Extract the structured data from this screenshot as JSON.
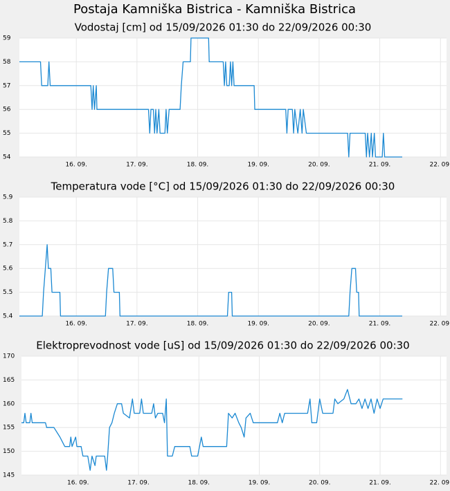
{
  "title": "Postaja Kamniška Bistrica - Kamniška Bistrica",
  "chart_data": [
    {
      "type": "line",
      "title": "Vodostaj [cm] od 15/09/2026 01:30 do 22/09/2026 00:30",
      "color": "#1a88d2",
      "grid": true,
      "xlim": [
        15.0625,
        22.1
      ],
      "xticks": [
        {
          "value": 16,
          "label": "16. 09."
        },
        {
          "value": 17,
          "label": "17. 09."
        },
        {
          "value": 18,
          "label": "18. 09."
        },
        {
          "value": 19,
          "label": "19. 09."
        },
        {
          "value": 20,
          "label": "20. 09."
        },
        {
          "value": 21,
          "label": "21. 09."
        },
        {
          "value": 22,
          "label": "22. 09."
        }
      ],
      "ylim": [
        54,
        59
      ],
      "yticks": [
        54,
        55,
        56,
        57,
        58,
        59
      ],
      "x": [
        15.0625,
        15.41,
        15.43,
        15.53,
        15.55,
        15.57,
        16.24,
        16.26,
        16.28,
        16.3,
        16.33,
        16.34,
        17.19,
        17.21,
        17.23,
        17.27,
        17.29,
        17.31,
        17.33,
        17.36,
        17.38,
        17.46,
        17.48,
        17.5,
        17.53,
        17.71,
        17.73,
        17.76,
        17.88,
        17.89,
        18.18,
        18.19,
        18.42,
        18.44,
        18.46,
        18.48,
        18.52,
        18.54,
        18.56,
        18.58,
        18.6,
        18.93,
        18.94,
        19.45,
        19.47,
        19.49,
        19.56,
        19.58,
        19.6,
        19.65,
        19.69,
        19.72,
        19.74,
        19.79,
        20.47,
        20.49,
        20.51,
        20.76,
        20.78,
        20.8,
        20.83,
        20.86,
        20.88,
        20.91,
        20.93,
        21.04,
        21.06,
        21.08,
        21.37
      ],
      "values": [
        58,
        58,
        57,
        57,
        58,
        57,
        57,
        56,
        57,
        56,
        57,
        56,
        56,
        55,
        56,
        56,
        55,
        56,
        55,
        56,
        55,
        55,
        56,
        55,
        56,
        56,
        57,
        58,
        58,
        59,
        59,
        58,
        58,
        57,
        58,
        57,
        57,
        58,
        57,
        58,
        57,
        57,
        56,
        56,
        55,
        56,
        56,
        55,
        56,
        55,
        56,
        55,
        56,
        55,
        55,
        54,
        55,
        55,
        54,
        55,
        54,
        55,
        54,
        55,
        54,
        54,
        55,
        54,
        54
      ]
    },
    {
      "type": "line",
      "title": "Temperatura vode [°C] od 15/09/2026 01:30 do 22/09/2026 00:30",
      "color": "#1a88d2",
      "grid": true,
      "xlim": [
        15.0625,
        22.1
      ],
      "xticks": [
        {
          "value": 16,
          "label": "16. 09."
        },
        {
          "value": 17,
          "label": "17. 09."
        },
        {
          "value": 18,
          "label": "18. 09."
        },
        {
          "value": 19,
          "label": "19. 09."
        },
        {
          "value": 20,
          "label": "20. 09."
        },
        {
          "value": 21,
          "label": "21. 09."
        },
        {
          "value": 22,
          "label": "22. 09."
        }
      ],
      "ylim": [
        5.4,
        5.9
      ],
      "yticks": [
        5.4,
        5.5,
        5.6,
        5.7,
        5.8,
        5.9
      ],
      "x": [
        15.0625,
        15.44,
        15.46,
        15.49,
        15.52,
        15.54,
        15.58,
        15.6,
        15.73,
        15.74,
        16.48,
        16.5,
        16.53,
        16.6,
        16.62,
        16.71,
        16.72,
        18.49,
        18.51,
        18.56,
        18.57,
        20.49,
        20.51,
        20.54,
        20.6,
        20.62,
        20.65,
        20.66,
        21.37
      ],
      "values": [
        5.4,
        5.4,
        5.5,
        5.6,
        5.7,
        5.6,
        5.6,
        5.5,
        5.5,
        5.4,
        5.4,
        5.5,
        5.6,
        5.6,
        5.5,
        5.5,
        5.4,
        5.4,
        5.5,
        5.5,
        5.4,
        5.4,
        5.5,
        5.6,
        5.6,
        5.5,
        5.5,
        5.4,
        5.4
      ]
    },
    {
      "type": "line",
      "title": "Elektroprevodnost vode [uS] od 15/09/2026 01:30 do 22/09/2026 00:30",
      "color": "#1a88d2",
      "grid": true,
      "xlim": [
        15.0625,
        22.1
      ],
      "xticks": [
        {
          "value": 16,
          "label": "16. 09."
        },
        {
          "value": 17,
          "label": "17. 09."
        },
        {
          "value": 18,
          "label": "18. 09."
        },
        {
          "value": 19,
          "label": "19. 09."
        },
        {
          "value": 20,
          "label": "20. 09."
        },
        {
          "value": 21,
          "label": "21. 09."
        },
        {
          "value": 22,
          "label": "22. 09."
        }
      ],
      "ylim": [
        145,
        170
      ],
      "yticks": [
        145,
        150,
        155,
        160,
        165,
        170
      ],
      "x": [
        15.0625,
        15.1,
        15.12,
        15.14,
        15.2,
        15.22,
        15.24,
        15.46,
        15.48,
        15.6,
        15.7,
        15.78,
        15.86,
        15.88,
        15.9,
        15.96,
        15.98,
        16.05,
        16.08,
        16.16,
        16.2,
        16.23,
        16.28,
        16.3,
        16.44,
        16.47,
        16.49,
        16.52,
        16.56,
        16.6,
        16.65,
        16.72,
        16.75,
        16.85,
        16.9,
        16.93,
        17.02,
        17.05,
        17.08,
        17.22,
        17.25,
        17.28,
        17.32,
        17.4,
        17.43,
        17.46,
        17.48,
        17.56,
        17.6,
        17.85,
        17.88,
        17.98,
        18.01,
        18.04,
        18.07,
        18.46,
        18.49,
        18.55,
        18.6,
        18.66,
        18.7,
        18.75,
        18.78,
        18.85,
        18.9,
        19.3,
        19.34,
        19.38,
        19.42,
        19.8,
        19.84,
        19.87,
        19.95,
        20.0,
        20.05,
        20.22,
        20.25,
        20.3,
        20.4,
        20.46,
        20.52,
        20.6,
        20.65,
        20.7,
        20.75,
        20.8,
        20.85,
        20.9,
        20.95,
        21.0,
        21.05,
        21.1,
        21.2,
        21.37
      ],
      "values": [
        156,
        156,
        158,
        156,
        156,
        158,
        156,
        156,
        155,
        155,
        153,
        151,
        151,
        153,
        151,
        153,
        151,
        151,
        149,
        149,
        146,
        149,
        147,
        149,
        149,
        146,
        149,
        155,
        156,
        158,
        160,
        160,
        158,
        157,
        161,
        158,
        158,
        161,
        158,
        158,
        160,
        157,
        158,
        158,
        156,
        161,
        149,
        149,
        151,
        151,
        149,
        149,
        151,
        153,
        151,
        151,
        158,
        157,
        158,
        156,
        155,
        153,
        157,
        158,
        156,
        156,
        158,
        156,
        158,
        158,
        161,
        156,
        156,
        161,
        158,
        158,
        161,
        160,
        161,
        163,
        160,
        160,
        161,
        159,
        161,
        159,
        161,
        158,
        161,
        159,
        161,
        161,
        161,
        161
      ]
    }
  ]
}
